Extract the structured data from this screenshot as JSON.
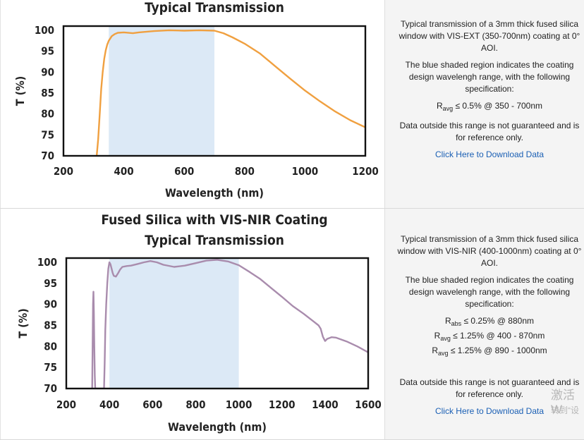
{
  "charts": [
    {
      "title_lines": [
        "Typical Transmission"
      ],
      "xlabel": "Wavelength (nm)",
      "ylabel": "T (%)",
      "xticks": [
        "200",
        "400",
        "600",
        "800",
        "1000",
        "1200"
      ],
      "yticks": [
        "70",
        "75",
        "80",
        "85",
        "90",
        "95",
        "100"
      ]
    },
    {
      "title_lines": [
        "Fused Silica with VIS-NIR Coating",
        "Typical Transmission"
      ],
      "xlabel": "Wavelength (nm)",
      "ylabel": "T (%)",
      "xticks": [
        "200",
        "400",
        "600",
        "800",
        "1000",
        "1200",
        "1400",
        "1600"
      ],
      "yticks": [
        "70",
        "75",
        "80",
        "85",
        "90",
        "95",
        "100"
      ]
    }
  ],
  "chart_data": [
    {
      "type": "line",
      "title": "Typical Transmission",
      "xlabel": "Wavelength (nm)",
      "ylabel": "T (%)",
      "xlim": [
        200,
        1200
      ],
      "ylim": [
        70,
        101
      ],
      "shaded_region": [
        350,
        700
      ],
      "line_color": "#f0a040",
      "shade_color": "#dce9f6",
      "series": [
        {
          "x": [
            310,
            315,
            320,
            325,
            330,
            335,
            340,
            345,
            350,
            360,
            370,
            380,
            400,
            430,
            450,
            500,
            550,
            600,
            650,
            700,
            730,
            760,
            800,
            850,
            900,
            950,
            1000,
            1050,
            1100,
            1150,
            1200
          ],
          "values": [
            70,
            74,
            80,
            86,
            90,
            93.2,
            95.2,
            96.6,
            97.5,
            98.6,
            99.1,
            99.4,
            99.5,
            99.3,
            99.5,
            99.8,
            100,
            99.9,
            100,
            99.9,
            99.3,
            98.3,
            96.8,
            94.5,
            91.5,
            88.5,
            85.6,
            83,
            80.6,
            78.5,
            76.8
          ]
        }
      ]
    },
    {
      "type": "line",
      "title": "Fused Silica with VIS-NIR Coating Typical Transmission",
      "xlabel": "Wavelength (nm)",
      "ylabel": "T (%)",
      "xlim": [
        200,
        1600
      ],
      "ylim": [
        70,
        101
      ],
      "shaded_region": [
        400,
        1000
      ],
      "line_color": "#a98cad",
      "shade_color": "#dce9f6",
      "series": [
        {
          "x": [
            320,
            322,
            324,
            326,
            328,
            330,
            332,
            334,
            336,
            340,
            375,
            378,
            381,
            385,
            390,
            395,
            400,
            405,
            410,
            415,
            420,
            430,
            440,
            450,
            460,
            480,
            500,
            530,
            560,
            590,
            620,
            650,
            700,
            750,
            800,
            850,
            900,
            950,
            1000,
            1050,
            1100,
            1150,
            1200,
            1250,
            1300,
            1350,
            1370,
            1380,
            1390,
            1400,
            1410,
            1430,
            1450,
            1500,
            1550,
            1600
          ],
          "values": [
            70,
            80,
            90,
            93,
            88,
            80,
            73,
            70,
            70,
            70,
            70,
            76,
            84,
            90,
            95,
            98.5,
            100,
            99.5,
            98.5,
            97.5,
            96.8,
            96.6,
            97.4,
            98.3,
            98.9,
            99.1,
            99.2,
            99.6,
            100,
            100.3,
            100,
            99.4,
            98.9,
            99.2,
            99.8,
            100.4,
            100.6,
            100.2,
            99.3,
            97.7,
            96,
            93.9,
            91.8,
            89.6,
            87.8,
            85.8,
            85,
            84.2,
            82.3,
            81.3,
            81.8,
            82.2,
            82.1,
            81.2,
            80,
            78.6
          ]
        }
      ]
    }
  ],
  "info": [
    {
      "p1": "Typical transmission of a 3mm thick fused silica window with VIS-EXT (350-700nm) coating at 0° AOI.",
      "p2": "The blue shaded region indicates the coating design wavelengh range, with the following specification:",
      "specs": [
        {
          "sym": "R",
          "sub": "avg",
          "text": " ≤ 0.5% @ 350 - 700nm"
        }
      ],
      "p3": "Data outside this range is not guaranteed and is for reference only.",
      "link": "Click Here to Download Data"
    },
    {
      "p1": "Typical transmission of a 3mm thick fused silica window with VIS-NIR (400-1000nm) coating at 0° AOI.",
      "p2": "The blue shaded region indicates the coating design wavelengh range, with the following specification:",
      "specs": [
        {
          "sym": "R",
          "sub": "abs",
          "text": " ≤ 0.25% @ 880nm"
        },
        {
          "sym": "R",
          "sub": "avg",
          "text": " ≤ 1.25% @ 400 - 870nm"
        },
        {
          "sym": "R",
          "sub": "avg",
          "text": " ≤ 1.25% @ 890 - 1000nm"
        }
      ],
      "p3": "Data outside this range is not guaranteed and is for reference only.",
      "link": "Click Here to Download Data"
    }
  ],
  "watermark": {
    "line1": "激活 W",
    "line2": "转到“设"
  }
}
